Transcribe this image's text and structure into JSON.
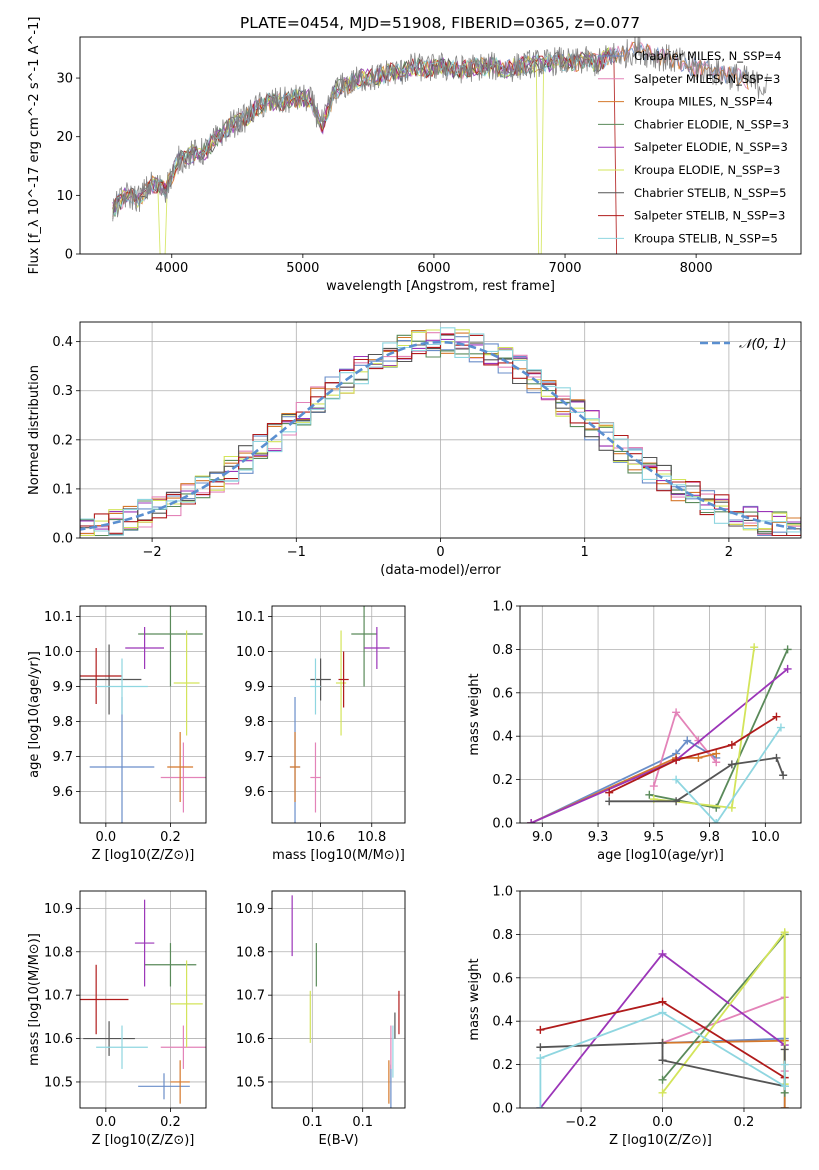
{
  "figure_title": "PLATE=0454, MJD=51908, FIBERID=0365, z=0.077",
  "chart_data": [
    {
      "id": "spectrum",
      "type": "line",
      "title": "PLATE=0454, MJD=51908, FIBERID=0365, z=0.077",
      "xlabel": "wavelength [Angstrom, rest frame]",
      "ylabel": "Flux [f_λ 10^-17 erg cm^-2 s^-1 A^-1]",
      "xlim": [
        3300,
        8800
      ],
      "ylim": [
        0,
        37
      ],
      "xticks": [
        4000,
        5000,
        6000,
        7000,
        8000
      ],
      "yticks": [
        0,
        10,
        20,
        30
      ],
      "legend": "right",
      "series": [
        {
          "name": "Chabrier MILES, N_SSP=4",
          "color": "#6a8ec9"
        },
        {
          "name": "Salpeter MILES, N_SSP=3",
          "color": "#e383b8"
        },
        {
          "name": "Kroupa MILES, N_SSP=4",
          "color": "#d5782b"
        },
        {
          "name": "Chabrier ELODIE, N_SSP=3",
          "color": "#5a8a5a"
        },
        {
          "name": "Salpeter ELODIE, N_SSP=3",
          "color": "#9b35b8"
        },
        {
          "name": "Kroupa ELODIE, N_SSP=3",
          "color": "#d3e45a"
        },
        {
          "name": "Chabrier STELIB, N_SSP=5",
          "color": "#555555"
        },
        {
          "name": "Salpeter STELIB, N_SSP=3",
          "color": "#b01b1b"
        },
        {
          "name": "Kroupa STELIB, N_SSP=5",
          "color": "#8fd6e0"
        }
      ],
      "envelope": {
        "x": [
          3550,
          3650,
          3750,
          3850,
          3950,
          4050,
          4150,
          4250,
          4350,
          4450,
          4550,
          4650,
          4750,
          4850,
          4950,
          5050,
          5150,
          5250,
          5350,
          5450,
          5550,
          5650,
          5750,
          5850,
          5950,
          6050,
          6150,
          6250,
          6350,
          6450,
          6550,
          6650,
          6750,
          6850,
          6950,
          7050,
          7150,
          7250,
          7350,
          7450,
          7550,
          7650,
          7750,
          7850,
          7950,
          8050,
          8150,
          8250,
          8350,
          8450,
          8550
        ],
        "y": [
          7.5,
          10.0,
          9.5,
          12.0,
          11.0,
          16.0,
          17.0,
          17.5,
          20.0,
          22.0,
          23.0,
          25.0,
          26.0,
          26.0,
          26.5,
          26.5,
          22.0,
          28.0,
          29.0,
          30.0,
          30.0,
          31.0,
          31.0,
          32.0,
          31.5,
          32.0,
          31.5,
          31.5,
          32.0,
          32.0,
          31.5,
          32.0,
          32.5,
          32.5,
          33.0,
          32.5,
          33.0,
          32.5,
          34.0,
          34.0,
          35.0,
          34.0,
          33.5,
          33.0,
          32.0,
          31.5,
          31.0,
          30.5,
          30.0,
          29.0,
          28.5
        ]
      }
    },
    {
      "id": "residuals",
      "type": "line",
      "title": "",
      "xlabel": "(data-model)/error",
      "ylabel": "Normed distribution",
      "xlim": [
        -2.5,
        2.5
      ],
      "ylim": [
        0,
        0.44
      ],
      "xticks": [
        -2,
        -1,
        0,
        1,
        2
      ],
      "yticks": [
        0.0,
        0.1,
        0.2,
        0.3,
        0.4
      ],
      "legend": "top-right",
      "gaussian_label": "𝒩(0, 1)",
      "gaussian_color": "#5a8fd0"
    },
    {
      "id": "age_vs_Z",
      "type": "scatter",
      "xlabel": "Z [log10(Z/Z⊙)]",
      "ylabel": "age [log10(age/yr)]",
      "xlim": [
        -0.08,
        0.31
      ],
      "ylim": [
        9.51,
        10.13
      ],
      "xticks": [
        0.0,
        0.2
      ],
      "yticks": [
        9.6,
        9.7,
        9.8,
        9.9,
        10.0,
        10.1
      ],
      "points": [
        {
          "x": 0.05,
          "y": 9.67,
          "xerr": 0.1,
          "yerr": 0.2,
          "color": "#6a8ec9"
        },
        {
          "x": 0.24,
          "y": 9.64,
          "xerr": 0.07,
          "yerr": 0.1,
          "color": "#e383b8"
        },
        {
          "x": 0.23,
          "y": 9.67,
          "xerr": 0.04,
          "yerr": 0.1,
          "color": "#d5782b"
        },
        {
          "x": 0.2,
          "y": 10.05,
          "xerr": 0.1,
          "yerr": 0.15,
          "color": "#5a8a5a"
        },
        {
          "x": 0.12,
          "y": 10.01,
          "xerr": 0.06,
          "yerr": 0.06,
          "color": "#9b35b8"
        },
        {
          "x": 0.25,
          "y": 9.91,
          "xerr": 0.04,
          "yerr": 0.15,
          "color": "#d3e45a"
        },
        {
          "x": 0.01,
          "y": 9.92,
          "xerr": 0.1,
          "yerr": 0.1,
          "color": "#555555"
        },
        {
          "x": -0.03,
          "y": 9.93,
          "xerr": 0.08,
          "yerr": 0.08,
          "color": "#b01b1b"
        },
        {
          "x": 0.05,
          "y": 9.9,
          "xerr": 0.08,
          "yerr": 0.08,
          "color": "#8fd6e0"
        }
      ]
    },
    {
      "id": "age_vs_mass",
      "type": "scatter",
      "xlabel": "mass [log10(M/M⊙)]",
      "ylabel": "",
      "xlim": [
        10.41,
        10.93
      ],
      "ylim": [
        9.51,
        10.13
      ],
      "xticks": [
        10.6,
        10.8
      ],
      "yticks": [
        9.6,
        9.7,
        9.8,
        9.9,
        10.0,
        10.1
      ],
      "points": [
        {
          "x": 10.5,
          "y": 9.67,
          "xerr": 0.02,
          "yerr": 0.2,
          "color": "#6a8ec9"
        },
        {
          "x": 10.58,
          "y": 9.64,
          "xerr": 0.02,
          "yerr": 0.1,
          "color": "#e383b8"
        },
        {
          "x": 10.5,
          "y": 9.67,
          "xerr": 0.02,
          "yerr": 0.1,
          "color": "#d5782b"
        },
        {
          "x": 10.77,
          "y": 10.05,
          "xerr": 0.05,
          "yerr": 0.15,
          "color": "#5a8a5a"
        },
        {
          "x": 10.82,
          "y": 10.01,
          "xerr": 0.05,
          "yerr": 0.06,
          "color": "#9b35b8"
        },
        {
          "x": 10.68,
          "y": 9.91,
          "xerr": 0.02,
          "yerr": 0.15,
          "color": "#d3e45a"
        },
        {
          "x": 10.6,
          "y": 9.92,
          "xerr": 0.04,
          "yerr": 0.06,
          "color": "#555555"
        },
        {
          "x": 10.69,
          "y": 9.92,
          "xerr": 0.02,
          "yerr": 0.08,
          "color": "#b01b1b"
        },
        {
          "x": 10.58,
          "y": 9.9,
          "xerr": 0.02,
          "yerr": 0.08,
          "color": "#8fd6e0"
        }
      ]
    },
    {
      "id": "massweight_vs_age",
      "type": "line",
      "xlabel": "age [log10(age/yr)]",
      "ylabel": "mass weight",
      "xlim": [
        8.9,
        10.16
      ],
      "ylim": [
        0,
        1
      ],
      "xticks": [
        9.0,
        9.25,
        9.5,
        9.75,
        10.0
      ],
      "yticks": [
        0.0,
        0.2,
        0.4,
        0.6,
        0.8,
        1.0
      ],
      "series": [
        {
          "color": "#6a8ec9",
          "x": [
            8.95,
            9.6,
            9.65,
            9.78
          ],
          "y": [
            0.0,
            0.32,
            0.38,
            0.3
          ]
        },
        {
          "color": "#e383b8",
          "x": [
            9.5,
            9.6,
            9.7,
            9.78
          ],
          "y": [
            0.17,
            0.51,
            0.38,
            0.28
          ]
        },
        {
          "color": "#d5782b",
          "x": [
            8.95,
            9.6,
            9.7,
            9.78
          ],
          "y": [
            0.0,
            0.3,
            0.3,
            0.32
          ]
        },
        {
          "color": "#5a8a5a",
          "x": [
            9.48,
            9.78,
            10.1
          ],
          "y": [
            0.13,
            0.07,
            0.8
          ]
        },
        {
          "color": "#9b35b8",
          "x": [
            8.95,
            9.6,
            10.1
          ],
          "y": [
            0.0,
            0.29,
            0.71
          ]
        },
        {
          "color": "#d3e45a",
          "x": [
            9.5,
            9.85,
            9.95
          ],
          "y": [
            0.11,
            0.07,
            0.81
          ]
        },
        {
          "color": "#555555",
          "x": [
            9.3,
            9.6,
            9.85,
            10.05,
            10.08
          ],
          "y": [
            0.1,
            0.1,
            0.27,
            0.3,
            0.22
          ]
        },
        {
          "color": "#b01b1b",
          "x": [
            9.3,
            9.6,
            9.85,
            10.05
          ],
          "y": [
            0.14,
            0.29,
            0.36,
            0.49
          ]
        },
        {
          "color": "#8fd6e0",
          "x": [
            9.6,
            9.78,
            10.07
          ],
          "y": [
            0.2,
            0.0,
            0.44
          ]
        }
      ]
    },
    {
      "id": "mass_vs_Z",
      "type": "scatter",
      "xlabel": "Z [log10(Z/Z⊙)]",
      "ylabel": "mass [log10(M/M⊙)]",
      "xlim": [
        -0.08,
        0.31
      ],
      "ylim": [
        10.44,
        10.94
      ],
      "xticks": [
        0.0,
        0.2
      ],
      "yticks": [
        10.5,
        10.6,
        10.7,
        10.8,
        10.9
      ],
      "points": [
        {
          "x": 0.18,
          "y": 10.49,
          "xerr": 0.08,
          "yerr": 0.03,
          "color": "#6a8ec9"
        },
        {
          "x": 0.24,
          "y": 10.58,
          "xerr": 0.07,
          "yerr": 0.05,
          "color": "#e383b8"
        },
        {
          "x": 0.23,
          "y": 10.5,
          "xerr": 0.03,
          "yerr": 0.05,
          "color": "#d5782b"
        },
        {
          "x": 0.2,
          "y": 10.77,
          "xerr": 0.08,
          "yerr": 0.05,
          "color": "#5a8a5a"
        },
        {
          "x": 0.12,
          "y": 10.82,
          "xerr": 0.03,
          "yerr": 0.1,
          "color": "#9b35b8"
        },
        {
          "x": 0.25,
          "y": 10.68,
          "xerr": 0.05,
          "yerr": 0.1,
          "color": "#d3e45a"
        },
        {
          "x": 0.01,
          "y": 10.6,
          "xerr": 0.08,
          "yerr": 0.04,
          "color": "#555555"
        },
        {
          "x": -0.03,
          "y": 10.69,
          "xerr": 0.1,
          "yerr": 0.08,
          "color": "#b01b1b"
        },
        {
          "x": 0.05,
          "y": 10.58,
          "xerr": 0.08,
          "yerr": 0.05,
          "color": "#8fd6e0"
        }
      ]
    },
    {
      "id": "mass_vs_ebv",
      "type": "scatter",
      "xlabel": "E(B-V)",
      "ylabel": "",
      "xlim": [
        0.01,
        0.142
      ],
      "ylim": [
        10.44,
        10.94
      ],
      "xticks": [
        0.05,
        0.1
      ],
      "yticks": [
        10.5,
        10.6,
        10.7,
        10.8,
        10.9
      ],
      "points": [
        {
          "x": 0.128,
          "y": 10.49,
          "yerr": 0.05,
          "color": "#6a8ec9"
        },
        {
          "x": 0.128,
          "y": 10.58,
          "yerr": 0.05,
          "color": "#e383b8"
        },
        {
          "x": 0.126,
          "y": 10.5,
          "yerr": 0.05,
          "color": "#d5782b"
        },
        {
          "x": 0.054,
          "y": 10.77,
          "yerr": 0.05,
          "color": "#5a8a5a"
        },
        {
          "x": 0.03,
          "y": 10.86,
          "yerr": 0.07,
          "color": "#9b35b8"
        },
        {
          "x": 0.048,
          "y": 10.65,
          "yerr": 0.06,
          "color": "#d3e45a"
        },
        {
          "x": 0.132,
          "y": 10.63,
          "yerr": 0.03,
          "color": "#555555"
        },
        {
          "x": 0.136,
          "y": 10.66,
          "yerr": 0.05,
          "color": "#b01b1b"
        },
        {
          "x": 0.13,
          "y": 10.57,
          "yerr": 0.06,
          "color": "#8fd6e0"
        }
      ]
    },
    {
      "id": "massweight_vs_Z",
      "type": "line",
      "xlabel": "Z [log10(Z/Z⊙)]",
      "ylabel": "mass weight",
      "xlim": [
        -0.35,
        0.34
      ],
      "ylim": [
        0,
        1
      ],
      "xticks": [
        -0.2,
        0.0,
        0.2
      ],
      "yticks": [
        0.0,
        0.2,
        0.4,
        0.6,
        0.8,
        1.0
      ],
      "series": [
        {
          "color": "#6a8ec9",
          "x": [
            0.0,
            0.3,
            0.3
          ],
          "y": [
            0.3,
            0.32,
            0.0
          ]
        },
        {
          "color": "#e383b8",
          "x": [
            0.0,
            0.3,
            0.3
          ],
          "y": [
            0.3,
            0.51,
            0.17
          ]
        },
        {
          "color": "#d5782b",
          "x": [
            0.0,
            0.3,
            0.3
          ],
          "y": [
            0.3,
            0.31,
            0.0
          ]
        },
        {
          "color": "#5a8a5a",
          "x": [
            0.0,
            0.3,
            0.3
          ],
          "y": [
            0.13,
            0.8,
            0.07
          ]
        },
        {
          "color": "#9b35b8",
          "x": [
            -0.3,
            0.0,
            0.3
          ],
          "y": [
            0.0,
            0.71,
            0.29
          ]
        },
        {
          "color": "#d3e45a",
          "x": [
            0.0,
            0.3,
            0.3
          ],
          "y": [
            0.07,
            0.81,
            0.11
          ]
        },
        {
          "color": "#555555",
          "x": [
            -0.3,
            0.0,
            0.0,
            0.3,
            0.3
          ],
          "y": [
            0.28,
            0.3,
            0.22,
            0.1,
            0.27
          ]
        },
        {
          "color": "#b01b1b",
          "x": [
            -0.3,
            0.0,
            0.3
          ],
          "y": [
            0.36,
            0.49,
            0.14
          ]
        },
        {
          "color": "#8fd6e0",
          "x": [
            -0.3,
            -0.3,
            0.0,
            0.3,
            0.3
          ],
          "y": [
            0.0,
            0.23,
            0.44,
            0.1,
            0.2
          ]
        }
      ]
    }
  ]
}
